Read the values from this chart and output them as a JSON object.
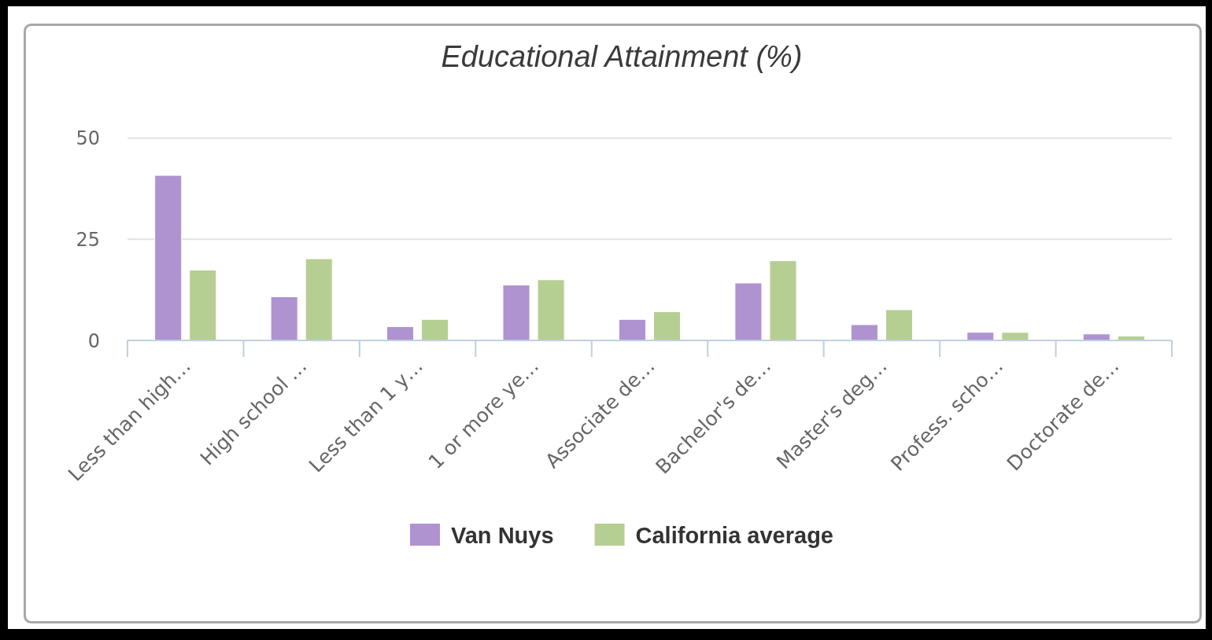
{
  "chart_data": {
    "type": "bar",
    "title": "Educational Attainment (%)",
    "categories": [
      "Less than high…",
      "High school …",
      "Less than 1 y…",
      "1 or more ye…",
      "Associate de…",
      "Bachelor's de…",
      "Master's deg…",
      "Profess. scho…",
      "Doctorate de…"
    ],
    "series": [
      {
        "name": "Van Nuys",
        "color": "#af92d0",
        "values": [
          40.8,
          10.8,
          3.4,
          13.7,
          5.2,
          14.2,
          3.9,
          2,
          1.6
        ]
      },
      {
        "name": "California average",
        "color": "#b5cf92",
        "values": [
          17.4,
          20.2,
          5.2,
          15,
          7.1,
          19.7,
          7.6,
          2,
          1.1
        ]
      }
    ],
    "ylim": [
      0,
      50
    ],
    "yticks": [
      0,
      25,
      50
    ],
    "grid": "y",
    "legend": "bottom"
  }
}
